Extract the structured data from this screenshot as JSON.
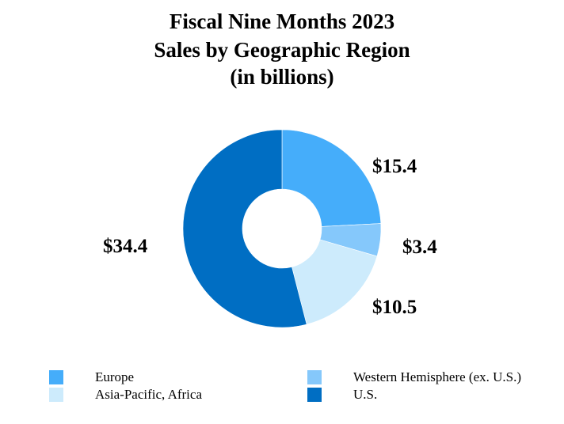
{
  "title": {
    "line1": "Fiscal Nine Months 2023",
    "line2": "Sales by Geographic Region",
    "line3": "(in billions)"
  },
  "chart_data": {
    "type": "pie",
    "variant": "donut",
    "start_angle_deg": 0,
    "direction": "clockwise",
    "slices": [
      {
        "name": "Europe",
        "value": 15.4,
        "label": "$15.4",
        "color": "#45ADFA"
      },
      {
        "name": "Western Hemisphere (ex. U.S.)",
        "value": 3.4,
        "label": "$3.4",
        "color": "#85C8FB"
      },
      {
        "name": "Asia-Pacific, Africa",
        "value": 10.5,
        "label": "$10.5",
        "color": "#CDEBFC"
      },
      {
        "name": "U.S.",
        "value": 34.4,
        "label": "$34.4",
        "color": "#006EC3"
      }
    ],
    "legend": {
      "placement": "bottom",
      "entries": [
        "Europe",
        "Western Hemisphere (ex. U.S.)",
        "Asia-Pacific, Africa",
        "U.S."
      ]
    }
  }
}
